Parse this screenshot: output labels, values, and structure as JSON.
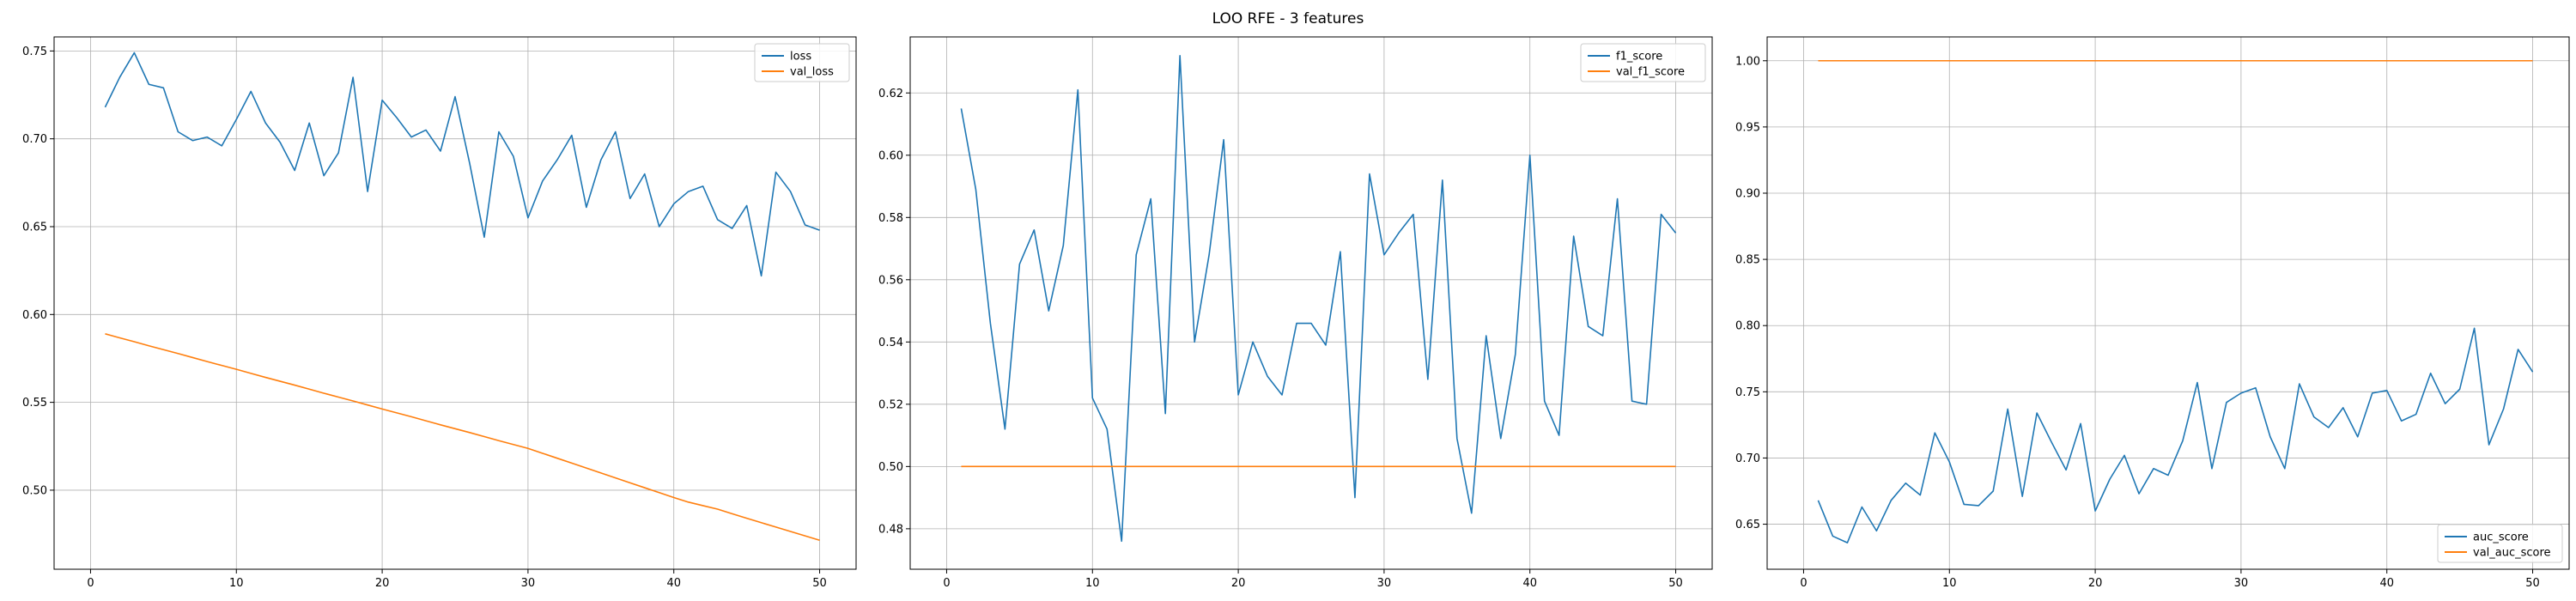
{
  "figure": {
    "suptitle": "LOO RFE - 3 features"
  },
  "chart_data": [
    {
      "type": "line",
      "xlim": [
        -2.5,
        52.5
      ],
      "ylim": [
        0.455,
        0.758
      ],
      "xticks": [
        0,
        10,
        20,
        30,
        40,
        50
      ],
      "yticks": [
        0.5,
        0.55,
        0.6,
        0.65,
        0.7,
        0.75
      ],
      "ytick_labels": [
        "0.50",
        "0.55",
        "0.60",
        "0.65",
        "0.70",
        "0.75"
      ],
      "grid": true,
      "legend_position": "top-right",
      "x": [
        1,
        2,
        3,
        4,
        5,
        6,
        7,
        8,
        9,
        10,
        11,
        12,
        13,
        14,
        15,
        16,
        17,
        18,
        19,
        20,
        21,
        22,
        23,
        24,
        25,
        26,
        27,
        28,
        29,
        30,
        31,
        32,
        33,
        34,
        35,
        36,
        37,
        38,
        39,
        40,
        41,
        42,
        43,
        44,
        45,
        46,
        47,
        48,
        49,
        50
      ],
      "series": [
        {
          "name": "loss",
          "color": "#1f77b4",
          "values": [
            0.718,
            0.735,
            0.749,
            0.731,
            0.729,
            0.704,
            0.699,
            0.701,
            0.696,
            0.711,
            0.727,
            0.709,
            0.698,
            0.682,
            0.709,
            0.679,
            0.692,
            0.735,
            0.67,
            0.722,
            0.712,
            0.701,
            0.705,
            0.693,
            0.724,
            0.686,
            0.644,
            0.704,
            0.69,
            0.655,
            0.676,
            0.688,
            0.702,
            0.661,
            0.688,
            0.704,
            0.666,
            0.68,
            0.65,
            0.663,
            0.67,
            0.673,
            0.654,
            0.649,
            0.662,
            0.622,
            0.681,
            0.67,
            0.651,
            0.648
          ]
        },
        {
          "name": "val_loss",
          "color": "#ff7f0e",
          "values": [
            0.589,
            0.5867,
            0.5845,
            0.5822,
            0.58,
            0.5778,
            0.5755,
            0.5732,
            0.571,
            0.5688,
            0.5665,
            0.5642,
            0.562,
            0.5598,
            0.5575,
            0.5552,
            0.553,
            0.5508,
            0.5485,
            0.5462,
            0.544,
            0.5418,
            0.5395,
            0.5372,
            0.535,
            0.5328,
            0.5305,
            0.5282,
            0.526,
            0.5238,
            0.521,
            0.5182,
            0.5154,
            0.5126,
            0.5098,
            0.507,
            0.5042,
            0.5014,
            0.4986,
            0.4958,
            0.4932,
            0.4912,
            0.4892,
            0.4866,
            0.484,
            0.4815,
            0.479,
            0.4765,
            0.474,
            0.4715
          ]
        }
      ]
    },
    {
      "type": "line",
      "xlim": [
        -2.5,
        52.5
      ],
      "ylim": [
        0.467,
        0.638
      ],
      "xticks": [
        0,
        10,
        20,
        30,
        40,
        50
      ],
      "yticks": [
        0.48,
        0.5,
        0.52,
        0.54,
        0.56,
        0.58,
        0.6,
        0.62
      ],
      "ytick_labels": [
        "0.48",
        "0.50",
        "0.52",
        "0.54",
        "0.56",
        "0.58",
        "0.60",
        "0.62"
      ],
      "grid": true,
      "legend_position": "top-right",
      "x": [
        1,
        2,
        3,
        4,
        5,
        6,
        7,
        8,
        9,
        10,
        11,
        12,
        13,
        14,
        15,
        16,
        17,
        18,
        19,
        20,
        21,
        22,
        23,
        24,
        25,
        26,
        27,
        28,
        29,
        30,
        31,
        32,
        33,
        34,
        35,
        36,
        37,
        38,
        39,
        40,
        41,
        42,
        43,
        44,
        45,
        46,
        47,
        48,
        49,
        50
      ],
      "series": [
        {
          "name": "f1_score",
          "color": "#1f77b4",
          "values": [
            0.615,
            0.589,
            0.546,
            0.512,
            0.565,
            0.576,
            0.55,
            0.571,
            0.621,
            0.522,
            0.512,
            0.476,
            0.568,
            0.586,
            0.517,
            0.632,
            0.54,
            0.568,
            0.605,
            0.523,
            0.54,
            0.529,
            0.523,
            0.546,
            0.546,
            0.539,
            0.569,
            0.49,
            0.594,
            0.568,
            0.575,
            0.581,
            0.528,
            0.592,
            0.509,
            0.485,
            0.542,
            0.509,
            0.536,
            0.6,
            0.521,
            0.51,
            0.574,
            0.545,
            0.542,
            0.586,
            0.521,
            0.52,
            0.581,
            0.575
          ]
        },
        {
          "name": "val_f1_score",
          "color": "#ff7f0e",
          "values": [
            0.5,
            0.5,
            0.5,
            0.5,
            0.5,
            0.5,
            0.5,
            0.5,
            0.5,
            0.5,
            0.5,
            0.5,
            0.5,
            0.5,
            0.5,
            0.5,
            0.5,
            0.5,
            0.5,
            0.5,
            0.5,
            0.5,
            0.5,
            0.5,
            0.5,
            0.5,
            0.5,
            0.5,
            0.5,
            0.5,
            0.5,
            0.5,
            0.5,
            0.5,
            0.5,
            0.5,
            0.5,
            0.5,
            0.5,
            0.5,
            0.5,
            0.5,
            0.5,
            0.5,
            0.5,
            0.5,
            0.5,
            0.5,
            0.5,
            0.5
          ]
        }
      ]
    },
    {
      "type": "line",
      "xlim": [
        -2.5,
        52.5
      ],
      "ylim": [
        0.616,
        1.018
      ],
      "xticks": [
        0,
        10,
        20,
        30,
        40,
        50
      ],
      "yticks": [
        0.65,
        0.7,
        0.75,
        0.8,
        0.85,
        0.9,
        0.95,
        1.0
      ],
      "ytick_labels": [
        "0.65",
        "0.70",
        "0.75",
        "0.80",
        "0.85",
        "0.90",
        "0.95",
        "1.00"
      ],
      "grid": true,
      "legend_position": "bottom-right",
      "x": [
        1,
        2,
        3,
        4,
        5,
        6,
        7,
        8,
        9,
        10,
        11,
        12,
        13,
        14,
        15,
        16,
        17,
        18,
        19,
        20,
        21,
        22,
        23,
        24,
        25,
        26,
        27,
        28,
        29,
        30,
        31,
        32,
        33,
        34,
        35,
        36,
        37,
        38,
        39,
        40,
        41,
        42,
        43,
        44,
        45,
        46,
        47,
        48,
        49,
        50
      ],
      "series": [
        {
          "name": "auc_score",
          "color": "#1f77b4",
          "values": [
            0.668,
            0.641,
            0.636,
            0.663,
            0.645,
            0.668,
            0.681,
            0.672,
            0.719,
            0.697,
            0.665,
            0.664,
            0.675,
            0.737,
            0.671,
            0.734,
            0.712,
            0.691,
            0.726,
            0.66,
            0.684,
            0.702,
            0.673,
            0.692,
            0.687,
            0.713,
            0.757,
            0.692,
            0.742,
            0.749,
            0.753,
            0.716,
            0.692,
            0.756,
            0.731,
            0.723,
            0.738,
            0.716,
            0.749,
            0.751,
            0.728,
            0.733,
            0.764,
            0.741,
            0.752,
            0.798,
            0.71,
            0.737,
            0.782,
            0.765
          ]
        },
        {
          "name": "val_auc_score",
          "color": "#ff7f0e",
          "values": [
            1.0,
            1.0,
            1.0,
            1.0,
            1.0,
            1.0,
            1.0,
            1.0,
            1.0,
            1.0,
            1.0,
            1.0,
            1.0,
            1.0,
            1.0,
            1.0,
            1.0,
            1.0,
            1.0,
            1.0,
            1.0,
            1.0,
            1.0,
            1.0,
            1.0,
            1.0,
            1.0,
            1.0,
            1.0,
            1.0,
            1.0,
            1.0,
            1.0,
            1.0,
            1.0,
            1.0,
            1.0,
            1.0,
            1.0,
            1.0,
            1.0,
            1.0,
            1.0,
            1.0,
            1.0,
            1.0,
            1.0,
            1.0,
            1.0,
            1.0
          ]
        }
      ]
    }
  ]
}
